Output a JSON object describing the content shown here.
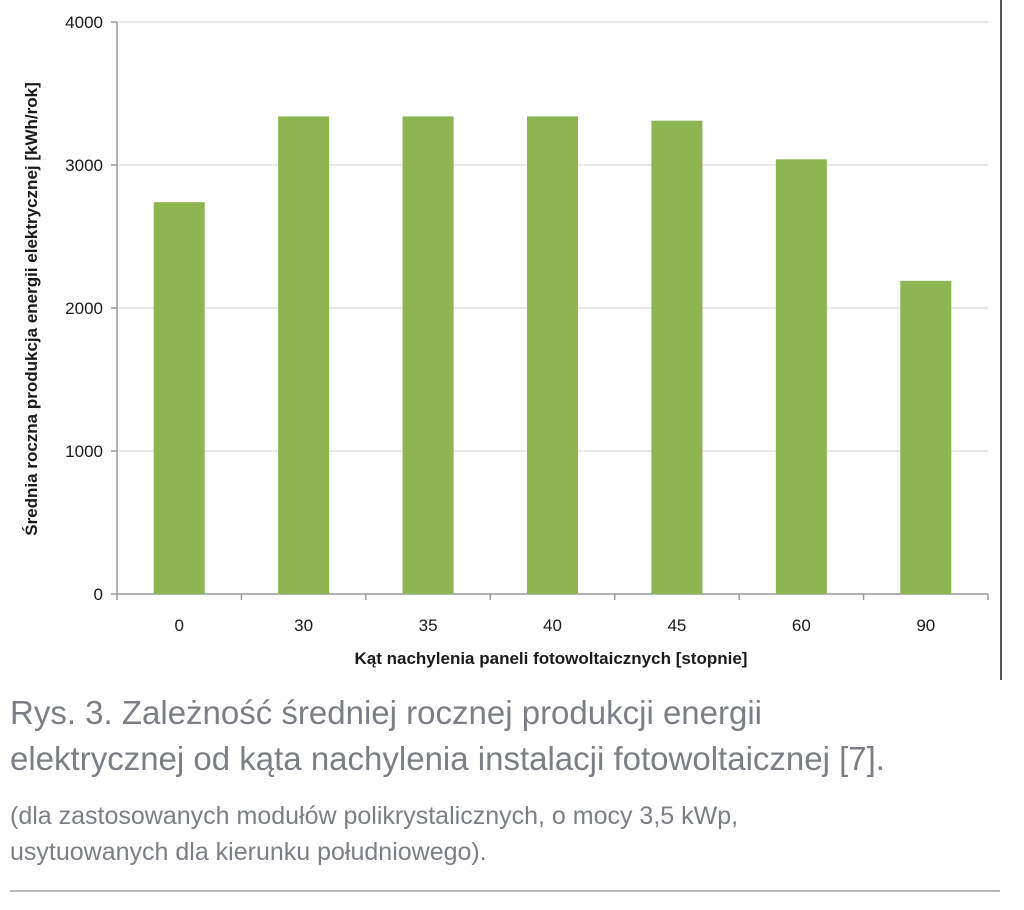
{
  "chart_data": {
    "type": "bar",
    "categories": [
      "0",
      "30",
      "35",
      "40",
      "45",
      "60",
      "90"
    ],
    "values": [
      2740,
      3340,
      3340,
      3340,
      3310,
      3040,
      2190
    ],
    "xlabel": "Kąt nachylenia paneli fotowoltaicznych [stopnie]",
    "ylabel": "Średnia roczna produkcja energii elektrycznej [kWh/rok]",
    "ylim": [
      0,
      4000
    ],
    "yticks": [
      "0",
      "1000",
      "2000",
      "3000",
      "4000"
    ],
    "grid": true,
    "legend": "none",
    "bar_color": "#8db653"
  },
  "caption": {
    "line1": "Rys. 3. Zależność średniej rocznej produkcji energii",
    "line2": "elektrycznej od kąta nachylenia instalacji fotowoltaicznej [7].",
    "note1": "(dla zastosowanych modułów polikrystalicznych, o mocy 3,5 kWp,",
    "note2": "usytuowanych dla kierunku południowego)."
  }
}
